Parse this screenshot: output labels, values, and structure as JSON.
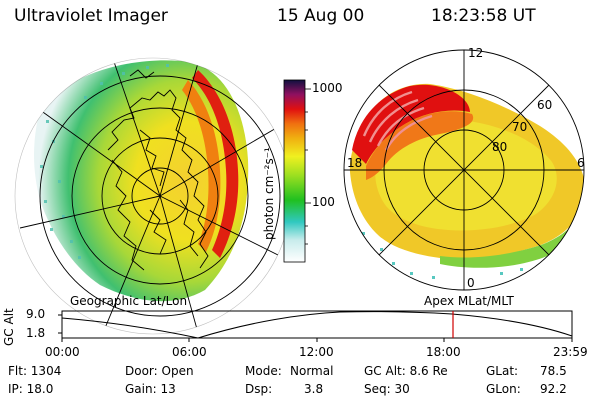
{
  "header": {
    "instrument": "Ultraviolet Imager",
    "date": "15 Aug 00",
    "time": "18:23:58 UT"
  },
  "colorbar": {
    "label": "photon cm⁻²s⁻¹",
    "ticks": [
      "1000",
      "100"
    ],
    "scale": "log"
  },
  "left_panel": {
    "caption": "Geographic Lat/Lon"
  },
  "right_panel": {
    "caption": "Apex  MLat/MLT",
    "lat_labels": [
      "60",
      "70",
      "80"
    ],
    "mlt_labels": [
      "12",
      "18",
      "6",
      "0"
    ]
  },
  "altitude_plot": {
    "ylabel": "GC Alt",
    "yticks": [
      "9.0",
      "1.8"
    ],
    "xticks": [
      "00:00",
      "06:00",
      "12:00",
      "18:00",
      "23:59"
    ],
    "marker_time_hours": 18.4
  },
  "info": {
    "flt": "Flt: 1304",
    "ip": "IP: 18.0",
    "door": "Door: Open",
    "gain": "Gain: 13",
    "mode_label": "Mode:",
    "mode_value": "Normal",
    "dsp_label": "Dsp:",
    "dsp_value": "3.8",
    "gcalt": "GC Alt: 8.6 Re",
    "seq": "Seq: 30",
    "glat_label": "GLat:",
    "glat_value": "78.5",
    "glon_label": "GLon:",
    "glon_value": "92.2"
  },
  "colors": {
    "low": "#e8f4f4",
    "cyan": "#40d0c8",
    "green": "#30c030",
    "yellow": "#f0e020",
    "orange": "#f08010",
    "red": "#e01010",
    "darkred": "#900020",
    "marker": "#d00000"
  }
}
